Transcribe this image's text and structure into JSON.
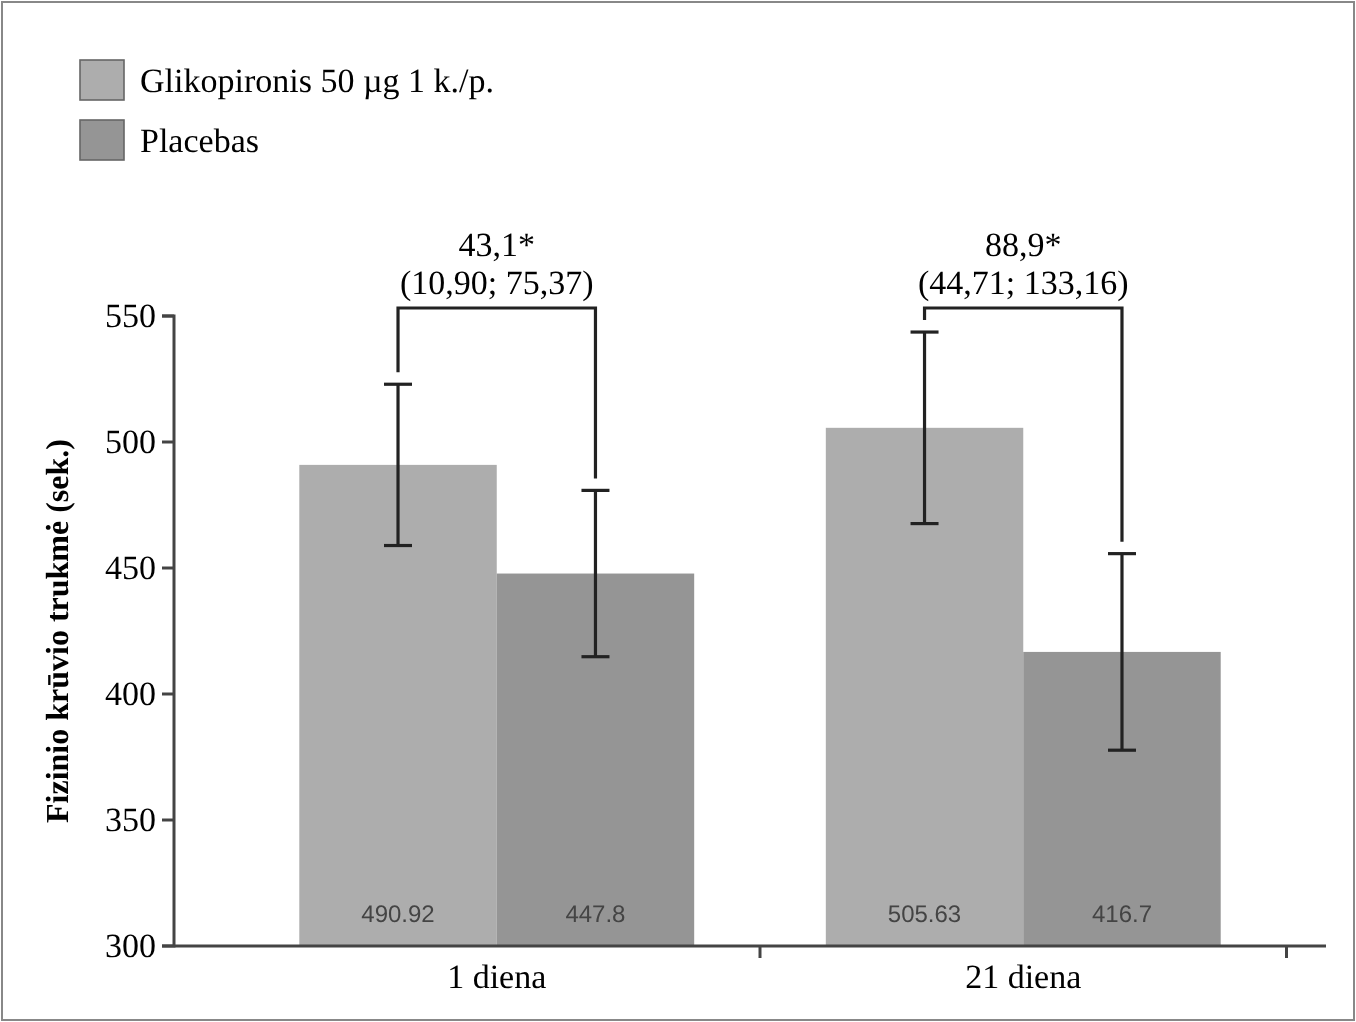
{
  "chart_data": {
    "type": "bar",
    "ylabel": "Fizinio krūvio trukmė (sek.)",
    "categories": [
      "1 diena",
      "21 diena"
    ],
    "series": [
      {
        "name": "Glikopironis 50 µg 1 k./p.",
        "color": "#adadad",
        "values": [
          490.92,
          505.63
        ],
        "errors": [
          32,
          38
        ],
        "value_labels": [
          "490.92",
          "505.63"
        ]
      },
      {
        "name": "Placebas",
        "color": "#959595",
        "values": [
          447.8,
          416.7
        ],
        "errors": [
          33,
          39
        ],
        "value_labels": [
          "447.8",
          "416.7"
        ]
      }
    ],
    "ylim": [
      300,
      550
    ],
    "yticks": [
      300,
      350,
      400,
      450,
      500,
      550
    ],
    "grid": false,
    "legend": "top left",
    "annotations": [
      "43,1*",
      "(10,90; 75,37)",
      "88,9*",
      "(44,71; 133,16)"
    ]
  }
}
